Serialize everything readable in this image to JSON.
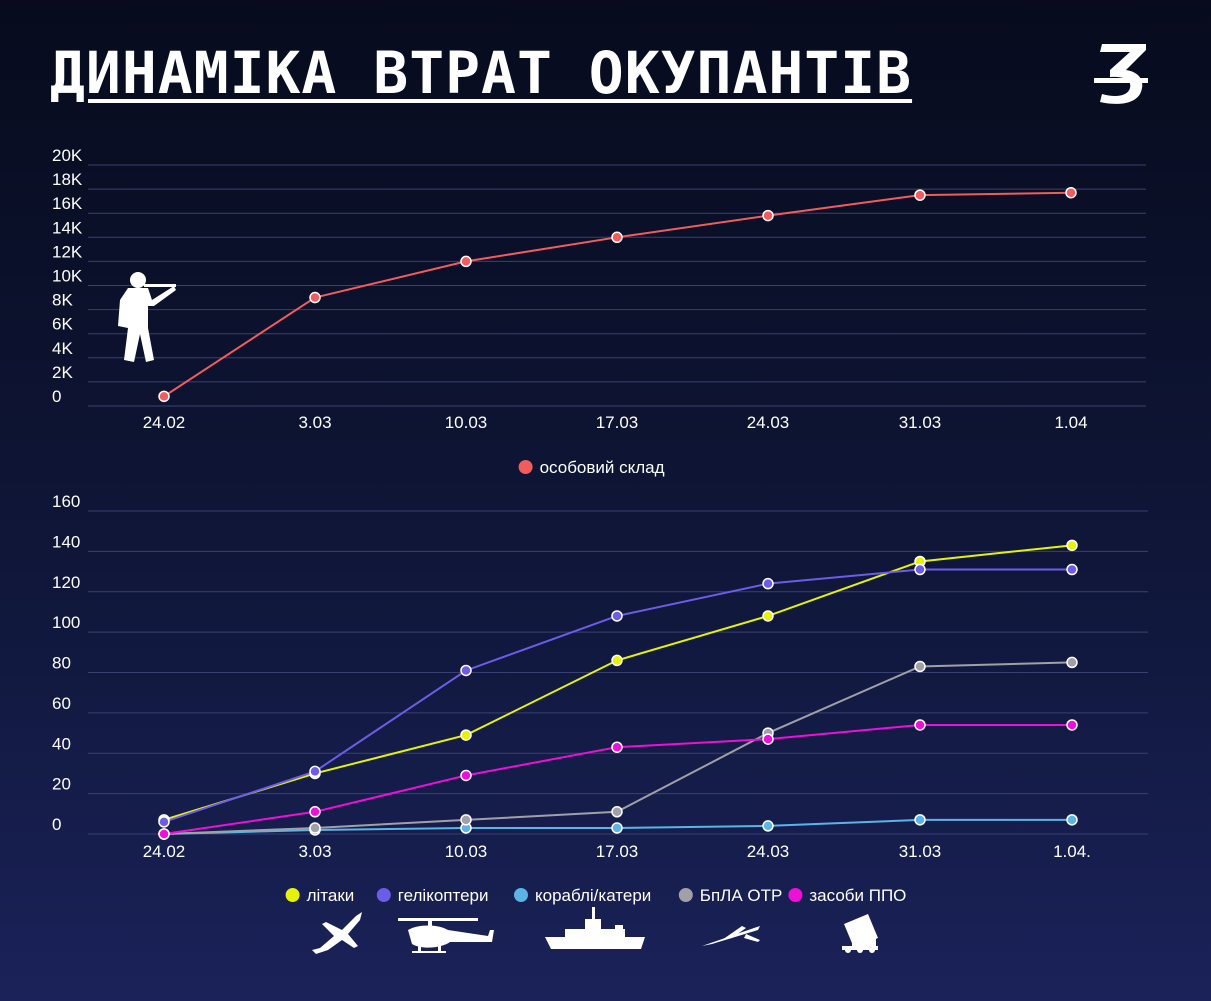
{
  "title": "ДИНАМІКА ВТРАТ ОКУПАНТІВ",
  "logo_text": "З",
  "chart_data": [
    {
      "type": "line",
      "title": "",
      "xlabel": "",
      "ylabel": "",
      "categories": [
        "24.02",
        "3.03",
        "10.03",
        "17.03",
        "24.03",
        "31.03",
        "1.04"
      ],
      "y_ticks": [
        "0",
        "2K",
        "4K",
        "6K",
        "8K",
        "10K",
        "12K",
        "14K",
        "16K",
        "18K",
        "20K"
      ],
      "ylim": [
        0,
        20000
      ],
      "grid": true,
      "legend_position": "bottom-center",
      "series": [
        {
          "name": "особовий склад",
          "color": "#f25c5c",
          "values": [
            800,
            9000,
            12000,
            14000,
            15800,
            17500,
            17700
          ]
        }
      ]
    },
    {
      "type": "line",
      "title": "",
      "xlabel": "",
      "ylabel": "",
      "categories": [
        "24.02",
        "3.03",
        "10.03",
        "17.03",
        "24.03",
        "31.03",
        "1.04."
      ],
      "y_ticks": [
        "0",
        "20",
        "40",
        "60",
        "80",
        "100",
        "120",
        "140",
        "160"
      ],
      "ylim": [
        0,
        160
      ],
      "grid": true,
      "legend_position": "bottom-center",
      "series": [
        {
          "name": "літаки",
          "color": "#e6f20a",
          "values": [
            7,
            30,
            49,
            86,
            108,
            135,
            143
          ]
        },
        {
          "name": "гелікоптери",
          "color": "#6c5ce7",
          "values": [
            6,
            31,
            81,
            108,
            124,
            131,
            131
          ]
        },
        {
          "name": "кораблі/катери",
          "color": "#5ab4e6",
          "values": [
            0,
            2,
            3,
            3,
            4,
            7,
            7
          ]
        },
        {
          "name": "БпЛА ОТР",
          "color": "#a0a0a8",
          "values": [
            0,
            3,
            7,
            11,
            50,
            83,
            85
          ]
        },
        {
          "name": "засоби ППО",
          "color": "#ee10d8",
          "values": [
            0,
            11,
            29,
            43,
            47,
            54,
            54
          ]
        }
      ]
    }
  ],
  "icons": [
    "soldier-icon",
    "plane-icon",
    "helicopter-icon",
    "ship-icon",
    "drone-icon",
    "air-defense-icon"
  ]
}
